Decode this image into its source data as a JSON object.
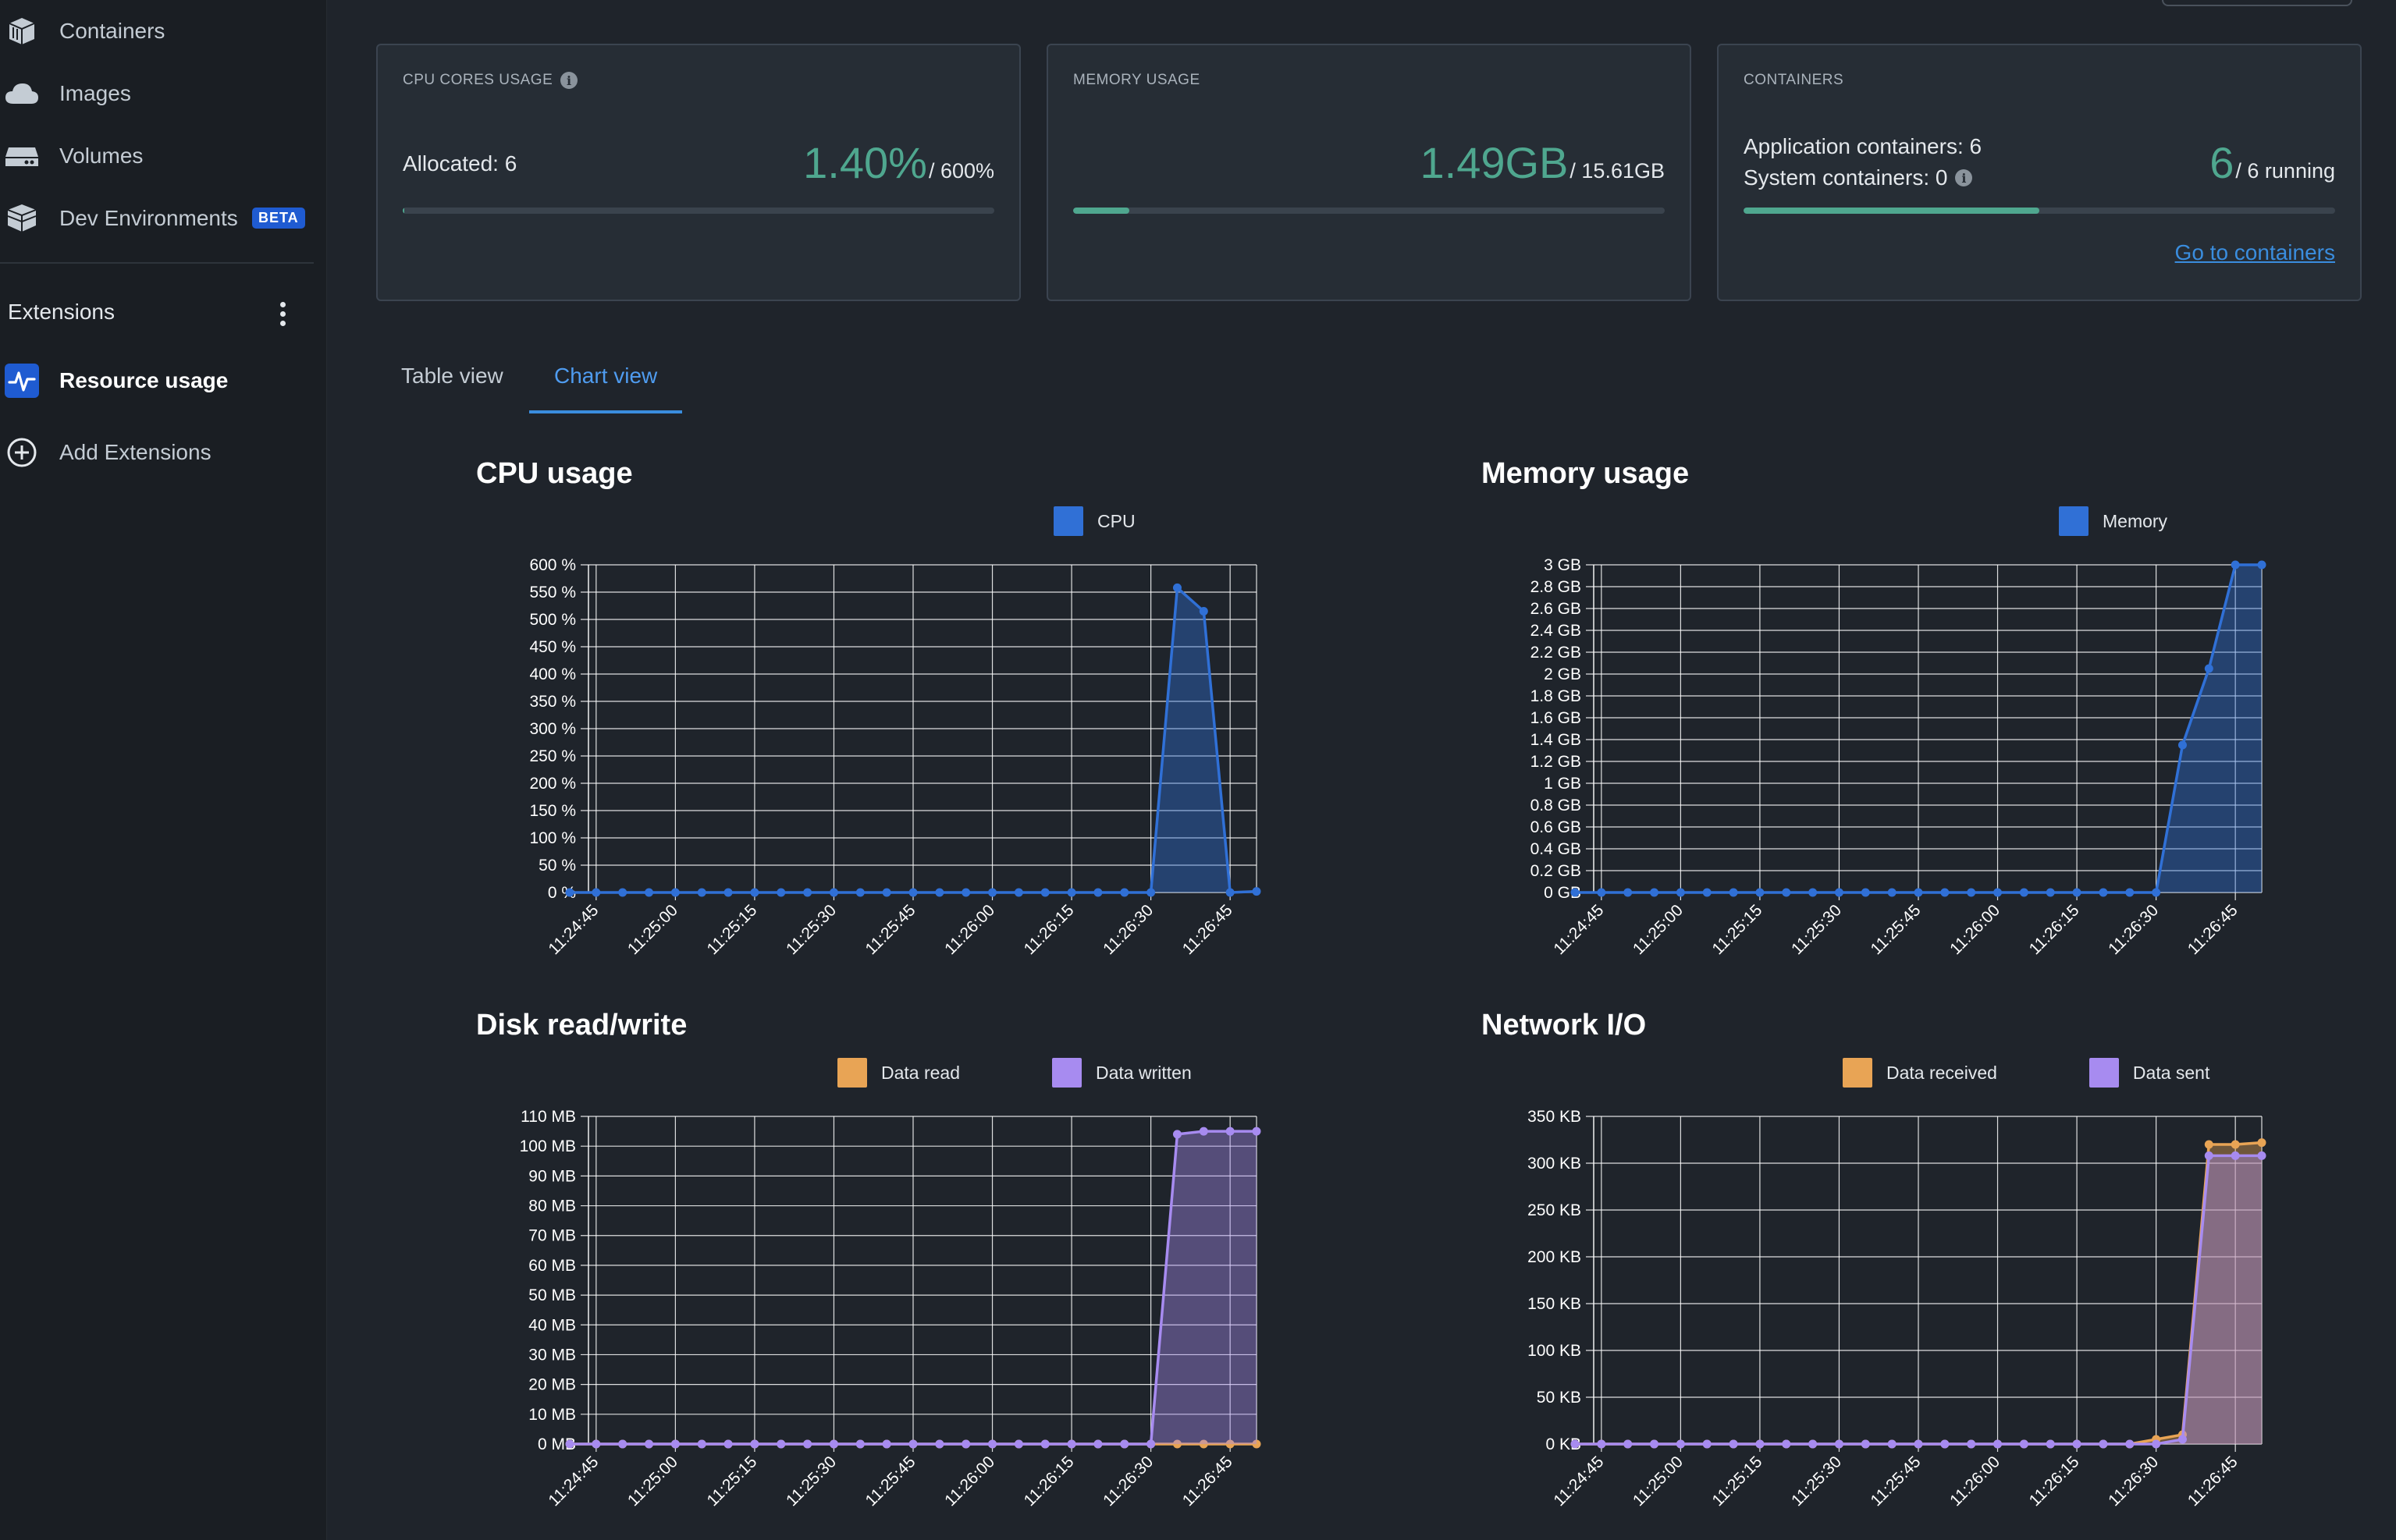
{
  "colors": {
    "accent_green": "#4fa78f",
    "link_blue": "#3a8dde",
    "cpu_blue": "#3070d6",
    "data_read": "#e8a455",
    "data_written": "#a78bf0",
    "grid": "#ffffff"
  },
  "sidebar": {
    "items": [
      {
        "label": "Containers",
        "icon": "containers-icon"
      },
      {
        "label": "Images",
        "icon": "cloud-icon"
      },
      {
        "label": "Volumes",
        "icon": "volume-icon"
      },
      {
        "label": "Dev Environments",
        "icon": "dev-env-icon",
        "badge": "BETA"
      }
    ],
    "extensions_title": "Extensions",
    "extensions": [
      {
        "label": "Resource usage",
        "icon": "resource-usage-icon"
      },
      {
        "label": "Add Extensions",
        "icon": "add-circle-icon"
      }
    ]
  },
  "cards": {
    "cpu": {
      "title": "CPU CORES USAGE",
      "allocated": "Allocated: 6",
      "value": "1.40%",
      "of": "/ 600%",
      "fill_percent": 0.23
    },
    "memory": {
      "title": "MEMORY USAGE",
      "value": "1.49GB",
      "of": "/ 15.61GB",
      "fill_percent": 9.5
    },
    "containers": {
      "title": "CONTAINERS",
      "app": "Application containers: 6",
      "system": "System containers: 0",
      "value": "6",
      "of": "/ 6 running",
      "fill_percent": 50,
      "link": "Go to containers"
    }
  },
  "tabs": {
    "table": "Table view",
    "chart": "Chart view",
    "active": "chart"
  },
  "chart_data": [
    {
      "type": "area",
      "title": "CPU usage",
      "x": [
        "11:24:40",
        "11:24:45",
        "11:24:50",
        "11:24:55",
        "11:25:00",
        "11:25:05",
        "11:25:10",
        "11:25:15",
        "11:25:20",
        "11:25:25",
        "11:25:30",
        "11:25:35",
        "11:25:40",
        "11:25:45",
        "11:25:50",
        "11:25:55",
        "11:26:00",
        "11:26:05",
        "11:26:10",
        "11:26:15",
        "11:26:20",
        "11:26:25",
        "11:26:30",
        "11:26:35",
        "11:26:40",
        "11:26:45",
        "11:26:50"
      ],
      "xticks": [
        "11:24:45",
        "11:25:00",
        "11:25:15",
        "11:25:30",
        "11:25:45",
        "11:26:00",
        "11:26:15",
        "11:26:30",
        "11:26:45"
      ],
      "yticks": [
        "0 %",
        "50 %",
        "100 %",
        "150 %",
        "200 %",
        "250 %",
        "300 %",
        "350 %",
        "400 %",
        "450 %",
        "500 %",
        "550 %",
        "600 %"
      ],
      "ylim": [
        0,
        600
      ],
      "series": [
        {
          "name": "CPU",
          "color": "#3070d6",
          "values": [
            0,
            0,
            0,
            0,
            0,
            0,
            0,
            0,
            0,
            0,
            0,
            0,
            0,
            0,
            0,
            0,
            0,
            0,
            0,
            0,
            0,
            0,
            0,
            558,
            515,
            0,
            2
          ]
        }
      ]
    },
    {
      "type": "area",
      "title": "Memory usage",
      "x": [
        "11:24:40",
        "11:24:45",
        "11:24:50",
        "11:24:55",
        "11:25:00",
        "11:25:05",
        "11:25:10",
        "11:25:15",
        "11:25:20",
        "11:25:25",
        "11:25:30",
        "11:25:35",
        "11:25:40",
        "11:25:45",
        "11:25:50",
        "11:25:55",
        "11:26:00",
        "11:26:05",
        "11:26:10",
        "11:26:15",
        "11:26:20",
        "11:26:25",
        "11:26:30",
        "11:26:35",
        "11:26:40",
        "11:26:45",
        "11:26:50"
      ],
      "xticks": [
        "11:24:45",
        "11:25:00",
        "11:25:15",
        "11:25:30",
        "11:25:45",
        "11:26:00",
        "11:26:15",
        "11:26:30",
        "11:26:45"
      ],
      "yticks": [
        "0 GB",
        "0.2 GB",
        "0.4 GB",
        "0.6 GB",
        "0.8 GB",
        "1 GB",
        "1.2 GB",
        "1.4 GB",
        "1.6 GB",
        "1.8 GB",
        "2 GB",
        "2.2 GB",
        "2.4 GB",
        "2.6 GB",
        "2.8 GB",
        "3 GB"
      ],
      "ylim": [
        0,
        3
      ],
      "series": [
        {
          "name": "Memory",
          "color": "#3070d6",
          "values": [
            0,
            0,
            0,
            0,
            0,
            0,
            0,
            0,
            0,
            0,
            0,
            0,
            0,
            0,
            0,
            0,
            0,
            0,
            0,
            0,
            0,
            0,
            0,
            1.35,
            2.05,
            3.0,
            3.0
          ]
        }
      ]
    },
    {
      "type": "area",
      "title": "Disk read/write",
      "x": [
        "11:24:40",
        "11:24:45",
        "11:24:50",
        "11:24:55",
        "11:25:00",
        "11:25:05",
        "11:25:10",
        "11:25:15",
        "11:25:20",
        "11:25:25",
        "11:25:30",
        "11:25:35",
        "11:25:40",
        "11:25:45",
        "11:25:50",
        "11:25:55",
        "11:26:00",
        "11:26:05",
        "11:26:10",
        "11:26:15",
        "11:26:20",
        "11:26:25",
        "11:26:30",
        "11:26:35",
        "11:26:40",
        "11:26:45",
        "11:26:50"
      ],
      "xticks": [
        "11:24:45",
        "11:25:00",
        "11:25:15",
        "11:25:30",
        "11:25:45",
        "11:26:00",
        "11:26:15",
        "11:26:30",
        "11:26:45"
      ],
      "yticks": [
        "0 MB",
        "10 MB",
        "20 MB",
        "30 MB",
        "40 MB",
        "50 MB",
        "60 MB",
        "70 MB",
        "80 MB",
        "90 MB",
        "100 MB",
        "110 MB"
      ],
      "ylim": [
        0,
        110
      ],
      "series": [
        {
          "name": "Data read",
          "color": "#e8a455",
          "values": [
            0,
            0,
            0,
            0,
            0,
            0,
            0,
            0,
            0,
            0,
            0,
            0,
            0,
            0,
            0,
            0,
            0,
            0,
            0,
            0,
            0,
            0,
            0,
            0,
            0,
            0,
            0
          ]
        },
        {
          "name": "Data written",
          "color": "#a78bf0",
          "values": [
            0,
            0,
            0,
            0,
            0,
            0,
            0,
            0,
            0,
            0,
            0,
            0,
            0,
            0,
            0,
            0,
            0,
            0,
            0,
            0,
            0,
            0,
            0,
            104,
            105,
            105,
            105
          ]
        }
      ]
    },
    {
      "type": "area",
      "title": "Network I/O",
      "x": [
        "11:24:40",
        "11:24:45",
        "11:24:50",
        "11:24:55",
        "11:25:00",
        "11:25:05",
        "11:25:10",
        "11:25:15",
        "11:25:20",
        "11:25:25",
        "11:25:30",
        "11:25:35",
        "11:25:40",
        "11:25:45",
        "11:25:50",
        "11:25:55",
        "11:26:00",
        "11:26:05",
        "11:26:10",
        "11:26:15",
        "11:26:20",
        "11:26:25",
        "11:26:30",
        "11:26:35",
        "11:26:40",
        "11:26:45",
        "11:26:50"
      ],
      "xticks": [
        "11:24:45",
        "11:25:00",
        "11:25:15",
        "11:25:30",
        "11:25:45",
        "11:26:00",
        "11:26:15",
        "11:26:30",
        "11:26:45"
      ],
      "yticks": [
        "0 KB",
        "50 KB",
        "100 KB",
        "150 KB",
        "200 KB",
        "250 KB",
        "300 KB",
        "350 KB"
      ],
      "ylim": [
        0,
        350
      ],
      "series": [
        {
          "name": "Data received",
          "color": "#e8a455",
          "values": [
            0,
            0,
            0,
            0,
            0,
            0,
            0,
            0,
            0,
            0,
            0,
            0,
            0,
            0,
            0,
            0,
            0,
            0,
            0,
            0,
            0,
            0,
            5,
            10,
            320,
            320,
            322
          ]
        },
        {
          "name": "Data sent",
          "color": "#a78bf0",
          "values": [
            0,
            0,
            0,
            0,
            0,
            0,
            0,
            0,
            0,
            0,
            0,
            0,
            0,
            0,
            0,
            0,
            0,
            0,
            0,
            0,
            0,
            0,
            0,
            5,
            308,
            308,
            308
          ]
        }
      ]
    }
  ]
}
